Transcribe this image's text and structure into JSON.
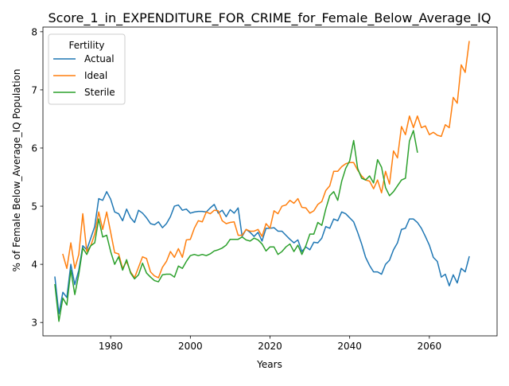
{
  "chart_data": {
    "type": "line",
    "title": "Score_1_in_EXPENDITURE_FOR_CRIME_for_Female_Below_Average_IQ",
    "xlabel": "Years",
    "ylabel": "% of Female Below_Average_IQ Population",
    "xlim": [
      1963,
      2077
    ],
    "ylim": [
      2.77,
      8.08
    ],
    "xticks": [
      1980,
      2000,
      2020,
      2040,
      2060
    ],
    "yticks": [
      3,
      4,
      5,
      6,
      7,
      8
    ],
    "grid": false,
    "legend": {
      "title": "Fertility",
      "position": "top-left"
    },
    "series": [
      {
        "name": "Actual",
        "color": "#1f77b4",
        "points": [
          [
            1966,
            3.78
          ],
          [
            1967,
            3.15
          ],
          [
            1968,
            3.52
          ],
          [
            1969,
            3.43
          ],
          [
            1970,
            4.0
          ],
          [
            1971,
            3.65
          ],
          [
            1972,
            3.9
          ],
          [
            1973,
            4.32
          ],
          [
            1974,
            4.25
          ],
          [
            1975,
            4.45
          ],
          [
            1976,
            4.65
          ],
          [
            1977,
            5.13
          ],
          [
            1978,
            5.1
          ],
          [
            1979,
            5.25
          ],
          [
            1980,
            5.12
          ],
          [
            1981,
            4.9
          ],
          [
            1982,
            4.87
          ],
          [
            1983,
            4.75
          ],
          [
            1984,
            4.95
          ],
          [
            1985,
            4.8
          ],
          [
            1986,
            4.72
          ],
          [
            1987,
            4.93
          ],
          [
            1988,
            4.88
          ],
          [
            1989,
            4.8
          ],
          [
            1990,
            4.7
          ],
          [
            1991,
            4.68
          ],
          [
            1992,
            4.73
          ],
          [
            1993,
            4.63
          ],
          [
            1994,
            4.7
          ],
          [
            1995,
            4.82
          ],
          [
            1996,
            5.0
          ],
          [
            1997,
            5.02
          ],
          [
            1998,
            4.93
          ],
          [
            1999,
            4.95
          ],
          [
            2000,
            4.88
          ],
          [
            2001,
            4.9
          ],
          [
            2002,
            4.91
          ],
          [
            2003,
            4.91
          ],
          [
            2004,
            4.9
          ],
          [
            2005,
            4.97
          ],
          [
            2006,
            5.03
          ],
          [
            2007,
            4.88
          ],
          [
            2008,
            4.93
          ],
          [
            2009,
            4.82
          ],
          [
            2010,
            4.94
          ],
          [
            2011,
            4.88
          ],
          [
            2012,
            4.97
          ],
          [
            2013,
            4.48
          ],
          [
            2014,
            4.6
          ],
          [
            2015,
            4.55
          ],
          [
            2016,
            4.48
          ],
          [
            2017,
            4.55
          ],
          [
            2018,
            4.4
          ],
          [
            2019,
            4.62
          ],
          [
            2020,
            4.62
          ],
          [
            2021,
            4.63
          ],
          [
            2022,
            4.57
          ],
          [
            2023,
            4.57
          ],
          [
            2024,
            4.5
          ],
          [
            2025,
            4.43
          ],
          [
            2026,
            4.37
          ],
          [
            2027,
            4.42
          ],
          [
            2028,
            4.22
          ],
          [
            2029,
            4.3
          ],
          [
            2030,
            4.25
          ],
          [
            2031,
            4.38
          ],
          [
            2032,
            4.37
          ],
          [
            2033,
            4.45
          ],
          [
            2034,
            4.65
          ],
          [
            2035,
            4.62
          ],
          [
            2036,
            4.78
          ],
          [
            2037,
            4.75
          ],
          [
            2038,
            4.9
          ],
          [
            2039,
            4.87
          ],
          [
            2040,
            4.8
          ],
          [
            2041,
            4.73
          ],
          [
            2042,
            4.55
          ],
          [
            2043,
            4.35
          ],
          [
            2044,
            4.12
          ],
          [
            2045,
            3.98
          ],
          [
            2046,
            3.87
          ],
          [
            2047,
            3.87
          ],
          [
            2048,
            3.83
          ],
          [
            2049,
            4.0
          ],
          [
            2050,
            4.07
          ],
          [
            2051,
            4.25
          ],
          [
            2052,
            4.37
          ],
          [
            2053,
            4.6
          ],
          [
            2054,
            4.62
          ],
          [
            2055,
            4.78
          ],
          [
            2056,
            4.78
          ],
          [
            2057,
            4.72
          ],
          [
            2058,
            4.62
          ],
          [
            2059,
            4.48
          ],
          [
            2060,
            4.33
          ],
          [
            2061,
            4.12
          ],
          [
            2062,
            4.05
          ],
          [
            2063,
            3.78
          ],
          [
            2064,
            3.83
          ],
          [
            2065,
            3.63
          ],
          [
            2066,
            3.82
          ],
          [
            2067,
            3.68
          ],
          [
            2068,
            3.93
          ],
          [
            2069,
            3.87
          ],
          [
            2070,
            4.13
          ]
        ]
      },
      {
        "name": "Ideal",
        "color": "#ff7f0e",
        "points": [
          [
            1968,
            4.17
          ],
          [
            1969,
            3.93
          ],
          [
            1970,
            4.37
          ],
          [
            1971,
            3.93
          ],
          [
            1972,
            4.17
          ],
          [
            1973,
            4.87
          ],
          [
            1974,
            4.22
          ],
          [
            1975,
            4.32
          ],
          [
            1976,
            4.52
          ],
          [
            1977,
            4.9
          ],
          [
            1978,
            4.6
          ],
          [
            1979,
            4.9
          ],
          [
            1980,
            4.55
          ],
          [
            1981,
            4.2
          ],
          [
            1982,
            4.18
          ],
          [
            1983,
            3.93
          ],
          [
            1984,
            4.05
          ],
          [
            1985,
            3.87
          ],
          [
            1986,
            3.77
          ],
          [
            1987,
            3.95
          ],
          [
            1988,
            4.13
          ],
          [
            1989,
            4.1
          ],
          [
            1990,
            3.87
          ],
          [
            1991,
            3.8
          ],
          [
            1992,
            3.77
          ],
          [
            1993,
            3.95
          ],
          [
            1994,
            4.05
          ],
          [
            1995,
            4.22
          ],
          [
            1996,
            4.12
          ],
          [
            1997,
            4.27
          ],
          [
            1998,
            4.12
          ],
          [
            1999,
            4.42
          ],
          [
            2000,
            4.43
          ],
          [
            2001,
            4.62
          ],
          [
            2002,
            4.75
          ],
          [
            2003,
            4.73
          ],
          [
            2004,
            4.9
          ],
          [
            2005,
            4.87
          ],
          [
            2006,
            4.93
          ],
          [
            2007,
            4.92
          ],
          [
            2008,
            4.75
          ],
          [
            2009,
            4.7
          ],
          [
            2010,
            4.72
          ],
          [
            2011,
            4.73
          ],
          [
            2012,
            4.5
          ],
          [
            2013,
            4.5
          ],
          [
            2014,
            4.6
          ],
          [
            2015,
            4.57
          ],
          [
            2016,
            4.57
          ],
          [
            2017,
            4.6
          ],
          [
            2018,
            4.48
          ],
          [
            2019,
            4.7
          ],
          [
            2020,
            4.62
          ],
          [
            2021,
            4.92
          ],
          [
            2022,
            4.87
          ],
          [
            2023,
            5.0
          ],
          [
            2024,
            5.02
          ],
          [
            2025,
            5.1
          ],
          [
            2026,
            5.05
          ],
          [
            2027,
            5.13
          ],
          [
            2028,
            4.98
          ],
          [
            2029,
            4.97
          ],
          [
            2030,
            4.88
          ],
          [
            2031,
            4.92
          ],
          [
            2032,
            5.03
          ],
          [
            2033,
            5.08
          ],
          [
            2034,
            5.27
          ],
          [
            2035,
            5.35
          ],
          [
            2036,
            5.6
          ],
          [
            2037,
            5.6
          ],
          [
            2038,
            5.68
          ],
          [
            2039,
            5.73
          ],
          [
            2040,
            5.75
          ],
          [
            2041,
            5.75
          ],
          [
            2042,
            5.62
          ],
          [
            2043,
            5.52
          ],
          [
            2044,
            5.45
          ],
          [
            2045,
            5.43
          ],
          [
            2046,
            5.3
          ],
          [
            2047,
            5.45
          ],
          [
            2048,
            5.23
          ],
          [
            2049,
            5.6
          ],
          [
            2050,
            5.38
          ],
          [
            2051,
            5.95
          ],
          [
            2052,
            5.83
          ],
          [
            2053,
            6.37
          ],
          [
            2054,
            6.23
          ],
          [
            2055,
            6.55
          ],
          [
            2056,
            6.35
          ],
          [
            2057,
            6.55
          ],
          [
            2058,
            6.35
          ],
          [
            2059,
            6.38
          ],
          [
            2060,
            6.23
          ],
          [
            2061,
            6.27
          ],
          [
            2062,
            6.22
          ],
          [
            2063,
            6.2
          ],
          [
            2064,
            6.4
          ],
          [
            2065,
            6.35
          ],
          [
            2066,
            6.87
          ],
          [
            2067,
            6.77
          ],
          [
            2068,
            7.43
          ],
          [
            2069,
            7.3
          ],
          [
            2070,
            7.83
          ]
        ]
      },
      {
        "name": "Sterile",
        "color": "#2ca02c",
        "points": [
          [
            1966,
            3.65
          ],
          [
            1967,
            3.02
          ],
          [
            1968,
            3.42
          ],
          [
            1969,
            3.3
          ],
          [
            1970,
            3.9
          ],
          [
            1971,
            3.48
          ],
          [
            1972,
            3.83
          ],
          [
            1973,
            4.28
          ],
          [
            1974,
            4.17
          ],
          [
            1975,
            4.32
          ],
          [
            1976,
            4.37
          ],
          [
            1977,
            4.78
          ],
          [
            1978,
            4.47
          ],
          [
            1979,
            4.5
          ],
          [
            1980,
            4.22
          ],
          [
            1981,
            4.0
          ],
          [
            1982,
            4.13
          ],
          [
            1983,
            3.9
          ],
          [
            1984,
            4.08
          ],
          [
            1985,
            3.85
          ],
          [
            1986,
            3.75
          ],
          [
            1987,
            3.82
          ],
          [
            1988,
            4.02
          ],
          [
            1989,
            3.85
          ],
          [
            1990,
            3.78
          ],
          [
            1991,
            3.72
          ],
          [
            1992,
            3.7
          ],
          [
            1993,
            3.82
          ],
          [
            1994,
            3.83
          ],
          [
            1995,
            3.83
          ],
          [
            1996,
            3.78
          ],
          [
            1997,
            3.97
          ],
          [
            1998,
            3.93
          ],
          [
            1999,
            4.05
          ],
          [
            2000,
            4.15
          ],
          [
            2001,
            4.17
          ],
          [
            2002,
            4.15
          ],
          [
            2003,
            4.17
          ],
          [
            2004,
            4.15
          ],
          [
            2005,
            4.18
          ],
          [
            2006,
            4.23
          ],
          [
            2007,
            4.25
          ],
          [
            2008,
            4.28
          ],
          [
            2009,
            4.33
          ],
          [
            2010,
            4.43
          ],
          [
            2011,
            4.43
          ],
          [
            2012,
            4.43
          ],
          [
            2013,
            4.47
          ],
          [
            2014,
            4.42
          ],
          [
            2015,
            4.4
          ],
          [
            2016,
            4.45
          ],
          [
            2017,
            4.42
          ],
          [
            2018,
            4.35
          ],
          [
            2019,
            4.23
          ],
          [
            2020,
            4.3
          ],
          [
            2021,
            4.3
          ],
          [
            2022,
            4.17
          ],
          [
            2023,
            4.22
          ],
          [
            2024,
            4.3
          ],
          [
            2025,
            4.35
          ],
          [
            2026,
            4.22
          ],
          [
            2027,
            4.33
          ],
          [
            2028,
            4.17
          ],
          [
            2029,
            4.32
          ],
          [
            2030,
            4.52
          ],
          [
            2031,
            4.52
          ],
          [
            2032,
            4.72
          ],
          [
            2033,
            4.67
          ],
          [
            2034,
            4.95
          ],
          [
            2035,
            5.18
          ],
          [
            2036,
            5.25
          ],
          [
            2037,
            5.1
          ],
          [
            2038,
            5.43
          ],
          [
            2039,
            5.65
          ],
          [
            2040,
            5.78
          ],
          [
            2041,
            6.13
          ],
          [
            2042,
            5.65
          ],
          [
            2043,
            5.48
          ],
          [
            2044,
            5.45
          ],
          [
            2045,
            5.52
          ],
          [
            2046,
            5.4
          ],
          [
            2047,
            5.8
          ],
          [
            2048,
            5.67
          ],
          [
            2049,
            5.32
          ],
          [
            2050,
            5.18
          ],
          [
            2051,
            5.25
          ],
          [
            2052,
            5.35
          ],
          [
            2053,
            5.45
          ],
          [
            2054,
            5.48
          ],
          [
            2055,
            6.12
          ],
          [
            2056,
            6.3
          ],
          [
            2057,
            5.93
          ]
        ]
      }
    ]
  }
}
